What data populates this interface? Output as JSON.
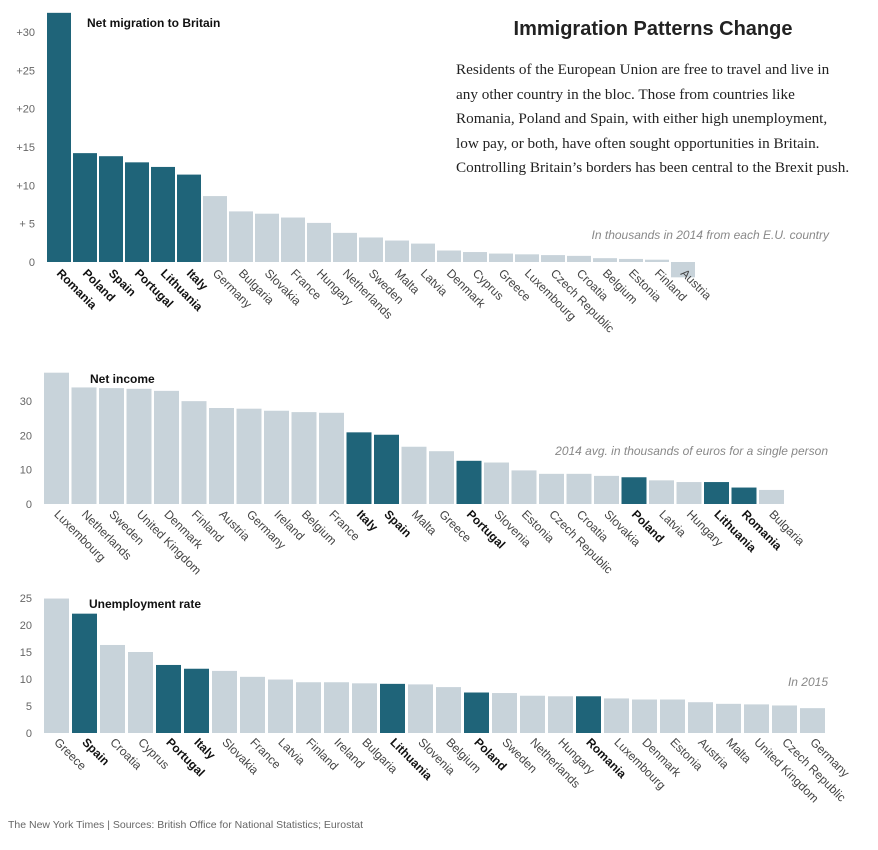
{
  "title": "Immigration Patterns Change",
  "intro": "Residents of the European Union are free to travel and live in any other country in the bloc. Those from countries like Romania, Poland and Spain, with either high unemployment, low pay, or both, have often sought opportunities in Britain. Controlling Britain’s borders has been central to the Brexit push.",
  "footer": {
    "publisher": "The New York Times",
    "sources": "Sources: British Office for National Statistics; Eurostat"
  },
  "colors": {
    "highlight": "#1f6479",
    "other": "#c8d3da",
    "axis_text": "#666666",
    "note_text": "#888888"
  },
  "chart_data": [
    {
      "type": "bar",
      "title": "Net migration to Britain",
      "note": "In thousands in 2014 from each E.U. country",
      "yticks": [
        0,
        5,
        10,
        15,
        20,
        25,
        30
      ],
      "ytick_labels": [
        "0",
        "+ 5",
        "+10",
        "+15",
        "+20",
        "+25",
        "+30"
      ],
      "ylim": [
        -2.5,
        33
      ],
      "categories": [
        "Romania",
        "Poland",
        "Spain",
        "Portugal",
        "Lithuania",
        "Italy",
        "Germany",
        "Bulgaria",
        "Slovakia",
        "France",
        "Hungary",
        "Netherlands",
        "Sweden",
        "Malta",
        "Latvia",
        "Denmark",
        "Cyprus",
        "Greece",
        "Luxembourg",
        "Czech Republic",
        "Croatia",
        "Belgium",
        "Estonia",
        "Finland",
        "Austria"
      ],
      "values": [
        32.5,
        14.2,
        13.8,
        13.0,
        12.4,
        11.4,
        8.6,
        6.6,
        6.3,
        5.8,
        5.1,
        3.8,
        3.2,
        2.8,
        2.4,
        1.5,
        1.3,
        1.1,
        1.0,
        0.9,
        0.8,
        0.5,
        0.4,
        0.3,
        -2.0
      ],
      "highlighted": [
        "Romania",
        "Poland",
        "Spain",
        "Portugal",
        "Lithuania",
        "Italy"
      ]
    },
    {
      "type": "bar",
      "title": "Net income",
      "note": "2014 avg. in thousands of euros for a single person",
      "yticks": [
        0,
        10,
        20,
        30
      ],
      "ytick_labels": [
        "0",
        "10",
        "20",
        "30"
      ],
      "ylim": [
        0,
        38.5
      ],
      "categories": [
        "Luxembourg",
        "Netherlands",
        "Sweden",
        "United Kingdom",
        "Denmark",
        "Finland",
        "Austria",
        "Germany",
        "Ireland",
        "Belgium",
        "France",
        "Italy",
        "Spain",
        "Malta",
        "Greece",
        "Portugal",
        "Slovenia",
        "Estonia",
        "Czech Republic",
        "Croatia",
        "Slovakia",
        "Poland",
        "Latvia",
        "Hungary",
        "Lithuania",
        "Romania",
        "Bulgaria"
      ],
      "values": [
        38.3,
        34.0,
        33.8,
        33.6,
        33.0,
        30.0,
        28.0,
        27.8,
        27.2,
        26.8,
        26.6,
        20.9,
        20.2,
        16.7,
        15.4,
        12.6,
        12.1,
        9.8,
        8.8,
        8.8,
        8.2,
        7.8,
        6.9,
        6.4,
        6.4,
        4.8,
        4.1
      ],
      "highlighted": [
        "Italy",
        "Spain",
        "Portugal",
        "Poland",
        "Lithuania",
        "Romania"
      ]
    },
    {
      "type": "bar",
      "title": "Unemployment rate",
      "note": "In 2015",
      "yticks": [
        0,
        5,
        10,
        15,
        20,
        25
      ],
      "ytick_labels": [
        "0",
        "5",
        "10",
        "15",
        "20",
        "25"
      ],
      "ylim": [
        0,
        25
      ],
      "categories": [
        "Greece",
        "Spain",
        "Croatia",
        "Cyprus",
        "Portugal",
        "Italy",
        "Slovakia",
        "France",
        "Latvia",
        "Finland",
        "Ireland",
        "Bulgaria",
        "Lithuania",
        "Slovenia",
        "Belgium",
        "Poland",
        "Sweden",
        "Netherlands",
        "Hungary",
        "Romania",
        "Luxembourg",
        "Denmark",
        "Estonia",
        "Austria",
        "Malta",
        "United Kingdom",
        "Czech Republic",
        "Germany"
      ],
      "values": [
        24.9,
        22.1,
        16.3,
        15.0,
        12.6,
        11.9,
        11.5,
        10.4,
        9.9,
        9.4,
        9.4,
        9.2,
        9.1,
        9.0,
        8.5,
        7.5,
        7.4,
        6.9,
        6.8,
        6.8,
        6.4,
        6.2,
        6.2,
        5.7,
        5.4,
        5.3,
        5.1,
        4.6
      ],
      "highlighted": [
        "Spain",
        "Portugal",
        "Italy",
        "Lithuania",
        "Poland",
        "Romania"
      ]
    }
  ]
}
